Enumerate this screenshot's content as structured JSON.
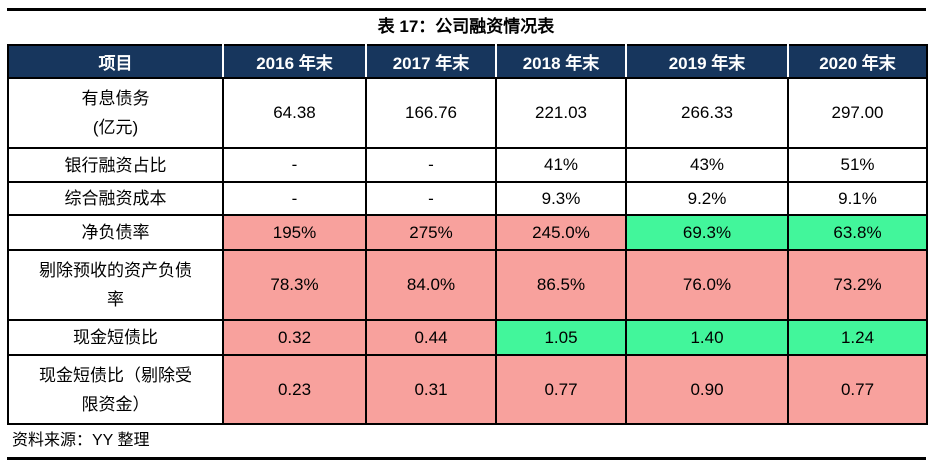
{
  "title": "表 17：公司融资情况表",
  "source_note": "资料来源：YY 整理",
  "colors": {
    "header_bg": "#17365D",
    "header_text": "#FFFFFF",
    "highlight_red": "#F8A19D",
    "highlight_green": "#42F69B",
    "border": "#000000",
    "text": "#000000"
  },
  "table": {
    "columns": [
      "项目",
      "2016 年末",
      "2017 年末",
      "2018 年末",
      "2019 年末",
      "2020 年末"
    ],
    "rows": [
      {
        "label_lines": [
          "有息债务",
          "(亿元)"
        ],
        "values": [
          "64.38",
          "166.76",
          "221.03",
          "266.33",
          "297.00"
        ],
        "cell_bg": [
          "none",
          "none",
          "none",
          "none",
          "none"
        ]
      },
      {
        "label_lines": [
          "银行融资占比"
        ],
        "values": [
          "-",
          "-",
          "41%",
          "43%",
          "51%"
        ],
        "cell_bg": [
          "none",
          "none",
          "none",
          "none",
          "none"
        ]
      },
      {
        "label_lines": [
          "综合融资成本"
        ],
        "values": [
          "-",
          "-",
          "9.3%",
          "9.2%",
          "9.1%"
        ],
        "cell_bg": [
          "none",
          "none",
          "none",
          "none",
          "none"
        ]
      },
      {
        "label_lines": [
          "净负债率"
        ],
        "values": [
          "195%",
          "275%",
          "245.0%",
          "69.3%",
          "63.8%"
        ],
        "cell_bg": [
          "red",
          "red",
          "red",
          "green",
          "green"
        ]
      },
      {
        "label_lines": [
          "剔除预收的资产负债",
          "率"
        ],
        "values": [
          "78.3%",
          "84.0%",
          "86.5%",
          "76.0%",
          "73.2%"
        ],
        "cell_bg": [
          "red",
          "red",
          "red",
          "red",
          "red"
        ]
      },
      {
        "label_lines": [
          "现金短债比"
        ],
        "values": [
          "0.32",
          "0.44",
          "1.05",
          "1.40",
          "1.24"
        ],
        "cell_bg": [
          "red",
          "red",
          "green",
          "green",
          "green"
        ]
      },
      {
        "label_lines": [
          "现金短债比（剔除受",
          "限资金）"
        ],
        "values": [
          "0.23",
          "0.31",
          "0.77",
          "0.90",
          "0.77"
        ],
        "cell_bg": [
          "red",
          "red",
          "red",
          "red",
          "red"
        ]
      }
    ]
  }
}
